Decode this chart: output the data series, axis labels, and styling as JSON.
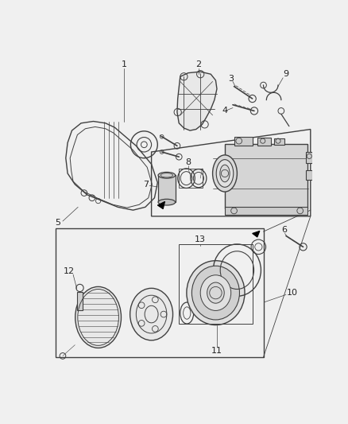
{
  "bg_color": "#f0f0f0",
  "lc": "#404040",
  "lc2": "#303030",
  "fig_w": 4.38,
  "fig_h": 5.33,
  "dpi": 100,
  "xlim": [
    0,
    438
  ],
  "ylim": [
    0,
    533
  ]
}
